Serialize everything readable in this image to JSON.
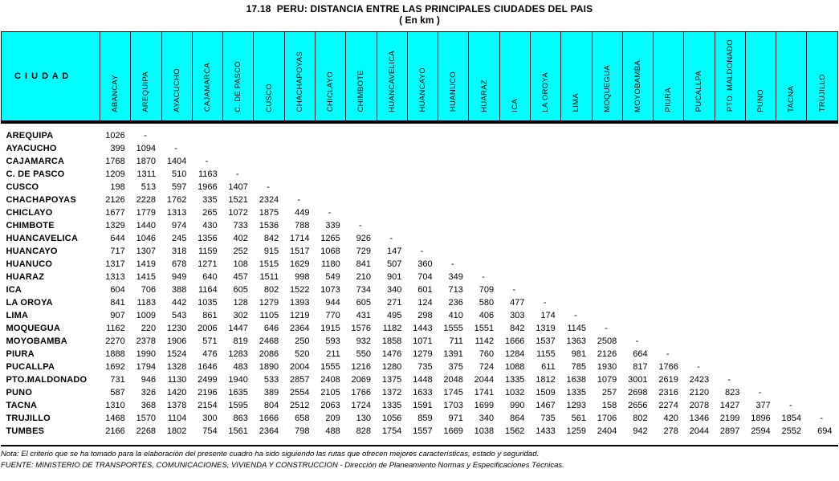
{
  "title": "17.18  PERU: DISTANCIA ENTRE LAS PRINCIPALES CIUDADES DEL PAIS",
  "subtitle": "( En km )",
  "colors": {
    "header_bg": "#00FFFF",
    "text": "#000000",
    "border": "#000000"
  },
  "table": {
    "corner_label": "C I U D A D",
    "columns": [
      "ABANCAY",
      "AREQUIPA",
      "AYACUCHO",
      "CAJAMARCA",
      "C. DE PASCO",
      "CUSCO",
      "CHACHAPOYAS",
      "CHICLAYO",
      "CHIMBOTE",
      "HUANCAVELICA",
      "HUANCAYO",
      "HUANUCO",
      "HUARAZ",
      "ICA",
      "LA OROYA",
      "LIMA",
      "MOQUEGUA",
      "MOYOBAMBA",
      "PIURA",
      "PUCALLPA",
      "PTO. MALDONADO",
      "PUNO",
      "TACNA",
      "TRUJILLO"
    ],
    "rows": [
      {
        "label": "AREQUIPA",
        "values": [
          "1026",
          "-"
        ]
      },
      {
        "label": "AYACUCHO",
        "values": [
          "399",
          "1094",
          "-"
        ]
      },
      {
        "label": "CAJAMARCA",
        "values": [
          "1768",
          "1870",
          "1404",
          "-"
        ]
      },
      {
        "label": "C. DE PASCO",
        "values": [
          "1209",
          "1311",
          "510",
          "1163",
          "-"
        ]
      },
      {
        "label": "CUSCO",
        "values": [
          "198",
          "513",
          "597",
          "1966",
          "1407",
          "-"
        ]
      },
      {
        "label": "CHACHAPOYAS",
        "values": [
          "2126",
          "2228",
          "1762",
          "335",
          "1521",
          "2324",
          "-"
        ]
      },
      {
        "label": "CHICLAYO",
        "values": [
          "1677",
          "1779",
          "1313",
          "265",
          "1072",
          "1875",
          "449",
          "-"
        ]
      },
      {
        "label": "CHIMBOTE",
        "values": [
          "1329",
          "1440",
          "974",
          "430",
          "733",
          "1536",
          "788",
          "339",
          "-"
        ]
      },
      {
        "label": "HUANCAVELICA",
        "values": [
          "644",
          "1046",
          "245",
          "1356",
          "402",
          "842",
          "1714",
          "1265",
          "926",
          "-"
        ]
      },
      {
        "label": "HUANCAYO",
        "values": [
          "717",
          "1307",
          "318",
          "1159",
          "252",
          "915",
          "1517",
          "1068",
          "729",
          "147",
          "-"
        ]
      },
      {
        "label": "HUANUCO",
        "values": [
          "1317",
          "1419",
          "678",
          "1271",
          "108",
          "1515",
          "1629",
          "1180",
          "841",
          "507",
          "360",
          "-"
        ]
      },
      {
        "label": "HUARAZ",
        "values": [
          "1313",
          "1415",
          "949",
          "640",
          "457",
          "1511",
          "998",
          "549",
          "210",
          "901",
          "704",
          "349",
          "-"
        ]
      },
      {
        "label": "ICA",
        "values": [
          "604",
          "706",
          "388",
          "1164",
          "605",
          "802",
          "1522",
          "1073",
          "734",
          "340",
          "601",
          "713",
          "709",
          "-"
        ]
      },
      {
        "label": "LA OROYA",
        "values": [
          "841",
          "1183",
          "442",
          "1035",
          "128",
          "1279",
          "1393",
          "944",
          "605",
          "271",
          "124",
          "236",
          "580",
          "477",
          "-"
        ]
      },
      {
        "label": "LIMA",
        "values": [
          "907",
          "1009",
          "543",
          "861",
          "302",
          "1105",
          "1219",
          "770",
          "431",
          "495",
          "298",
          "410",
          "406",
          "303",
          "174",
          "-"
        ]
      },
      {
        "label": "MOQUEGUA",
        "values": [
          "1162",
          "220",
          "1230",
          "2006",
          "1447",
          "646",
          "2364",
          "1915",
          "1576",
          "1182",
          "1443",
          "1555",
          "1551",
          "842",
          "1319",
          "1145",
          "-"
        ]
      },
      {
        "label": "MOYOBAMBA",
        "values": [
          "2270",
          "2378",
          "1906",
          "571",
          "819",
          "2468",
          "250",
          "593",
          "932",
          "1858",
          "1071",
          "711",
          "1142",
          "1666",
          "1537",
          "1363",
          "2508",
          "-"
        ]
      },
      {
        "label": "PIURA",
        "values": [
          "1888",
          "1990",
          "1524",
          "476",
          "1283",
          "2086",
          "520",
          "211",
          "550",
          "1476",
          "1279",
          "1391",
          "760",
          "1284",
          "1155",
          "981",
          "2126",
          "664",
          "-"
        ]
      },
      {
        "label": "PUCALLPA",
        "values": [
          "1692",
          "1794",
          "1328",
          "1646",
          "483",
          "1890",
          "2004",
          "1555",
          "1216",
          "1280",
          "735",
          "375",
          "724",
          "1088",
          "611",
          "785",
          "1930",
          "817",
          "1766",
          "-"
        ]
      },
      {
        "label": "PTO.MALDONADO",
        "values": [
          "731",
          "946",
          "1130",
          "2499",
          "1940",
          "533",
          "2857",
          "2408",
          "2069",
          "1375",
          "1448",
          "2048",
          "2044",
          "1335",
          "1812",
          "1638",
          "1079",
          "3001",
          "2619",
          "2423",
          "-"
        ]
      },
      {
        "label": "PUNO",
        "values": [
          "587",
          "326",
          "1420",
          "2196",
          "1635",
          "389",
          "2554",
          "2105",
          "1766",
          "1372",
          "1633",
          "1745",
          "1741",
          "1032",
          "1509",
          "1335",
          "257",
          "2698",
          "2316",
          "2120",
          "823",
          "-"
        ]
      },
      {
        "label": "TACNA",
        "values": [
          "1310",
          "368",
          "1378",
          "2154",
          "1595",
          "804",
          "2512",
          "2063",
          "1724",
          "1335",
          "1591",
          "1703",
          "1699",
          "990",
          "1467",
          "1293",
          "158",
          "2656",
          "2274",
          "2078",
          "1427",
          "377",
          "-"
        ]
      },
      {
        "label": "TRUJILLO",
        "values": [
          "1468",
          "1570",
          "1104",
          "300",
          "863",
          "1666",
          "658",
          "209",
          "130",
          "1056",
          "859",
          "971",
          "340",
          "864",
          "735",
          "561",
          "1706",
          "802",
          "420",
          "1346",
          "2199",
          "1896",
          "1854",
          "-"
        ]
      },
      {
        "label": "TUMBES",
        "values": [
          "2166",
          "2268",
          "1802",
          "754",
          "1561",
          "2364",
          "798",
          "488",
          "828",
          "1754",
          "1557",
          "1669",
          "1038",
          "1562",
          "1433",
          "1259",
          "2404",
          "942",
          "278",
          "2044",
          "2897",
          "2594",
          "2552",
          "694"
        ]
      }
    ]
  },
  "notes": {
    "nota": "Nota: El criterio que se ha tomado para la elaboración del presente cuadro ha sido siguiendo las rutas que ofrecen mejores características, estado y seguridad.",
    "fuente": "FUENTE: MINISTERIO DE TRANSPORTES, COMUNICACIONES, VIVIENDA Y CONSTRUCCION - Dirección de Planeamiento Normas y Especificaciones Técnicas."
  }
}
